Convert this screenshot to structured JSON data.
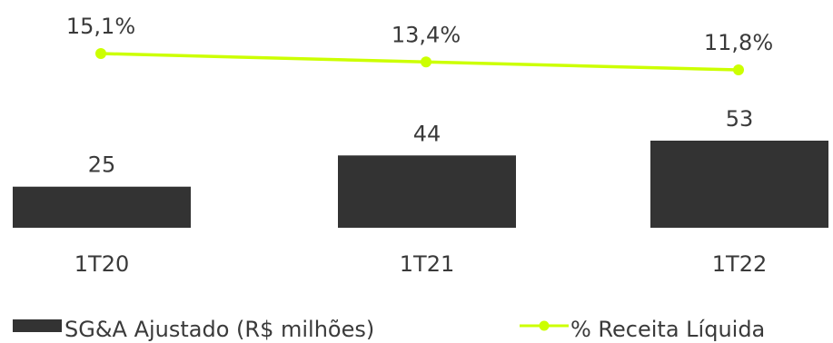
{
  "chart_data": {
    "type": "bar",
    "categories": [
      "1T20",
      "1T21",
      "1T22"
    ],
    "series": [
      {
        "name": "SG&A Ajustado (R$ milhões)",
        "type": "bar",
        "values": [
          25,
          44,
          53
        ],
        "labels": [
          "25",
          "44",
          "53"
        ],
        "color": "#333333"
      },
      {
        "name": "% Receita Líquida",
        "type": "line",
        "values": [
          15.1,
          13.4,
          11.8
        ],
        "labels": [
          "15,1%",
          "13,4%",
          "11,8%"
        ],
        "color": "#ccff00"
      }
    ],
    "legend": "bottom",
    "grid": false
  }
}
